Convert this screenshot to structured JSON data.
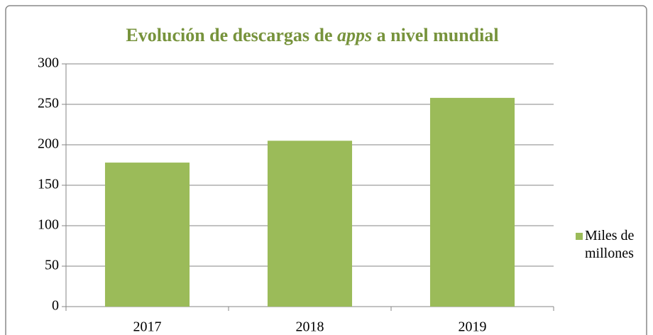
{
  "chart_data": {
    "type": "bar",
    "title": [
      "Evolución de descargas de ",
      "apps",
      " a nivel mundial"
    ],
    "categories": [
      "2017",
      "2018",
      "2019"
    ],
    "series": [
      {
        "name": "Miles de millones",
        "color": "#9bbb59",
        "values": [
          178,
          205,
          258
        ]
      }
    ],
    "ylim": [
      0,
      300
    ],
    "yticks": [
      0,
      50,
      100,
      150,
      200,
      250,
      300
    ],
    "grid": true,
    "legend": "right"
  }
}
